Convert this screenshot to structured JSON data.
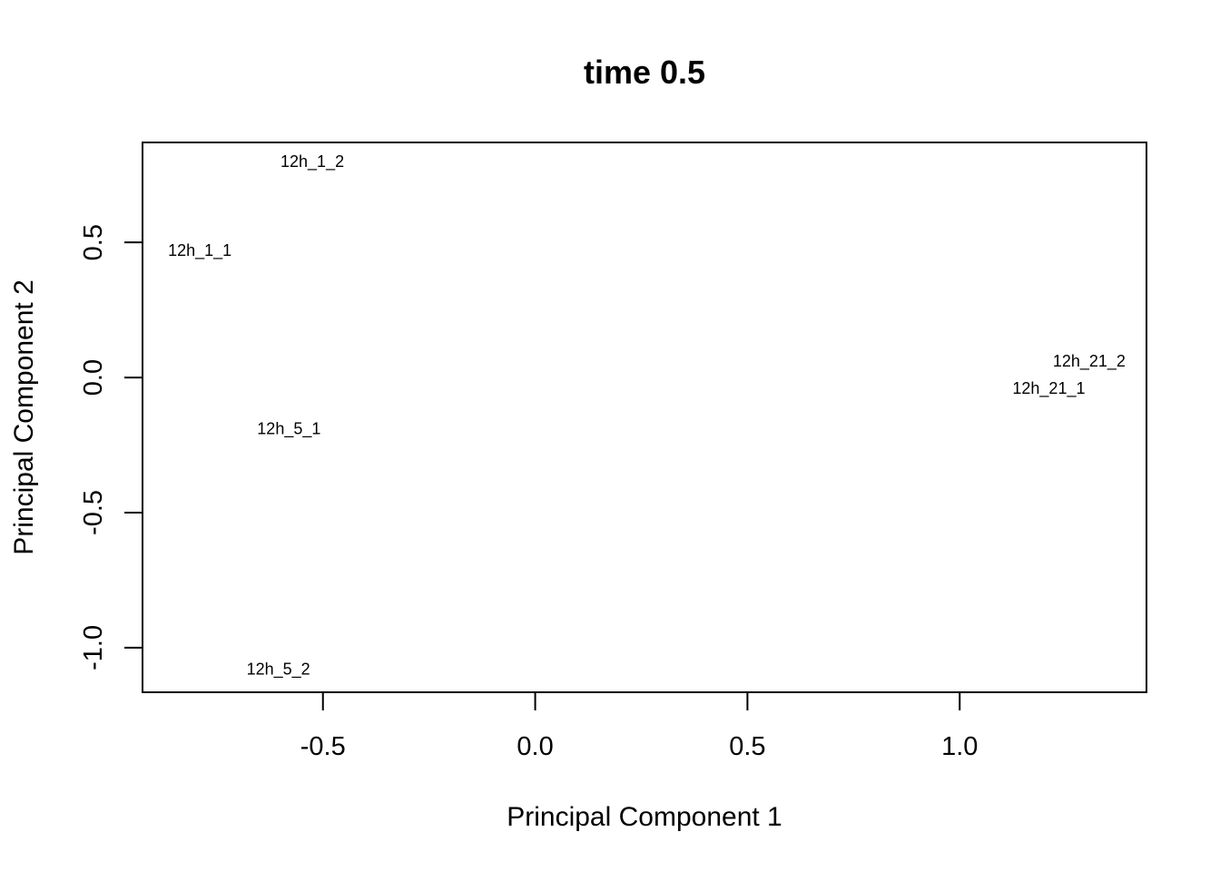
{
  "chart_data": {
    "type": "scatter",
    "title": "time 0.5",
    "xlabel": "Principal Component 1",
    "ylabel": "Principal Component 2",
    "xlim": [
      -0.925,
      1.44
    ],
    "ylim": [
      -1.165,
      0.87
    ],
    "xticks": [
      -0.5,
      0.0,
      0.5,
      1.0
    ],
    "xtick_labels": [
      "-0.5",
      "0.0",
      "0.5",
      "1.0"
    ],
    "yticks": [
      -1.0,
      -0.5,
      0.0,
      0.5
    ],
    "ytick_labels": [
      "-1.0",
      "-0.5",
      "0.0",
      "0.5"
    ],
    "grid": false,
    "points": [
      {
        "label": "12h_1_1",
        "x": -0.79,
        "y": 0.47
      },
      {
        "label": "12h_1_2",
        "x": -0.525,
        "y": 0.8
      },
      {
        "label": "12h_5_1",
        "x": -0.58,
        "y": -0.19
      },
      {
        "label": "12h_5_2",
        "x": -0.605,
        "y": -1.08
      },
      {
        "label": "12h_21_1",
        "x": 1.21,
        "y": -0.04
      },
      {
        "label": "12h_21_2",
        "x": 1.305,
        "y": 0.06
      }
    ]
  }
}
